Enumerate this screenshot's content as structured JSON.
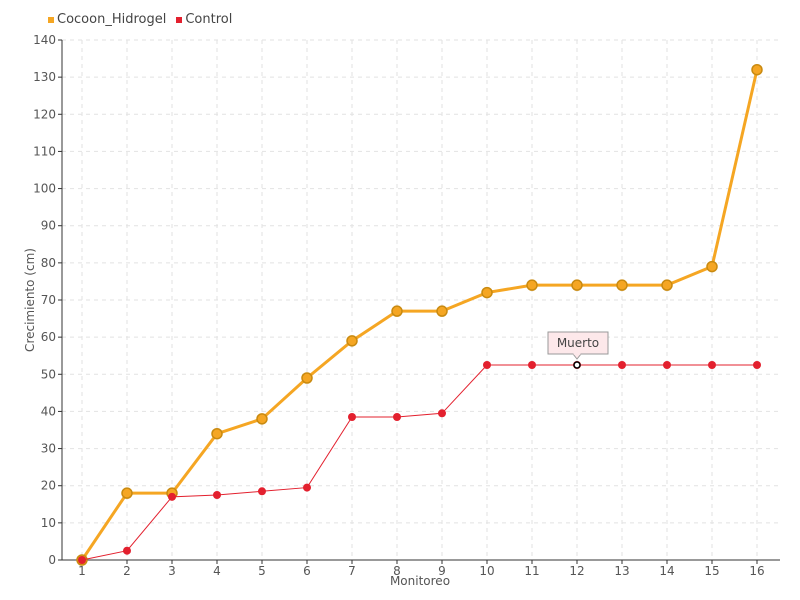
{
  "chart_data": {
    "type": "line",
    "title": "",
    "xlabel": "Monitoreo",
    "ylabel": "Crecimiento (cm)",
    "categories": [
      "1",
      "2",
      "3",
      "4",
      "5",
      "6",
      "7",
      "8",
      "9",
      "10",
      "11",
      "12",
      "13",
      "14",
      "15",
      "16"
    ],
    "ylim": [
      0,
      140
    ],
    "yticks": [
      0,
      10,
      20,
      30,
      40,
      50,
      60,
      70,
      80,
      90,
      100,
      110,
      120,
      130,
      140
    ],
    "grid": true,
    "legend_position": "top-left",
    "series": [
      {
        "name": "Cocoon_Hidrogel",
        "color": "#f5a623",
        "values": [
          0,
          18,
          18,
          34,
          38,
          49,
          59,
          67,
          67,
          72,
          74,
          74,
          74,
          74,
          79,
          132
        ]
      },
      {
        "name": "Control",
        "color": "#e3202e",
        "values": [
          0,
          2.5,
          17,
          17.5,
          18.5,
          19.5,
          38.5,
          38.5,
          39.5,
          52.5,
          52.5,
          52.5,
          52.5,
          52.5,
          52.5,
          52.5
        ]
      }
    ],
    "annotation": {
      "text": "Muerto",
      "series": "Control",
      "category": "12"
    }
  }
}
